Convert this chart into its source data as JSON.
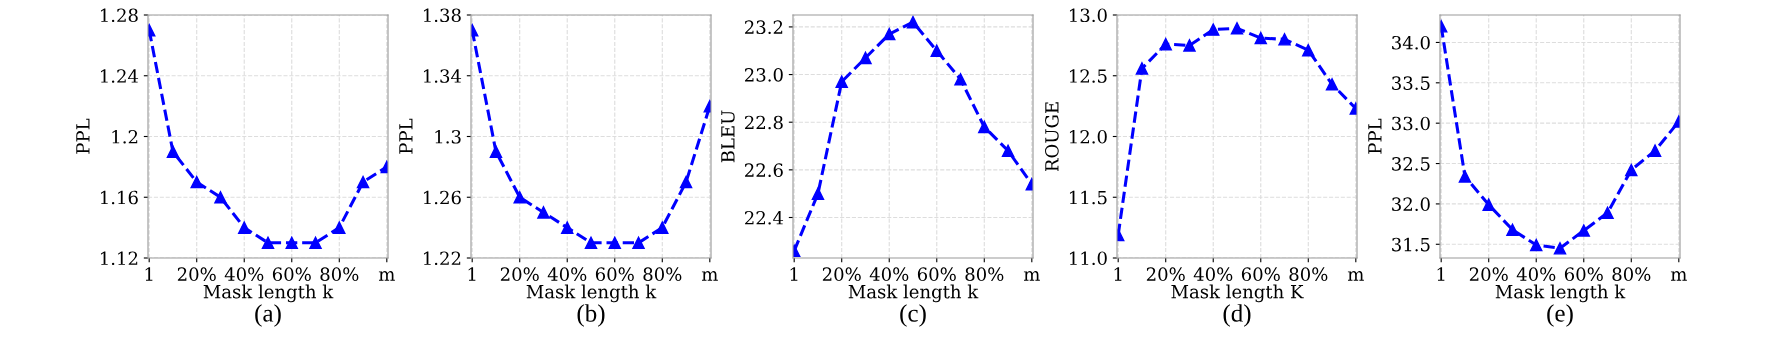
{
  "chart_data": [
    {
      "type": "line",
      "title": "(a)",
      "xlabel": "Mask length k",
      "ylabel": "PPL",
      "categories": [
        "1",
        null,
        "20%",
        null,
        "40%",
        null,
        "60%",
        null,
        "80%",
        null,
        "m"
      ],
      "series": [
        {
          "color": "#0000ff",
          "values": [
            1.27,
            1.19,
            1.17,
            1.16,
            1.14,
            1.13,
            1.13,
            1.13,
            1.14,
            1.17,
            1.18
          ]
        }
      ],
      "ylim": [
        1.12,
        1.28
      ],
      "yticks": [
        {
          "value": 1.12,
          "label": "1.12"
        },
        {
          "value": 1.16,
          "label": "1.16"
        },
        {
          "value": 1.2,
          "label": "1.2"
        },
        {
          "value": 1.24,
          "label": "1.24"
        },
        {
          "value": 1.28,
          "label": "1.28"
        }
      ],
      "grid": true,
      "marker": "triangle",
      "line_style": "dashed"
    },
    {
      "type": "line",
      "title": "(b)",
      "xlabel": "Mask length k",
      "ylabel": "PPL",
      "categories": [
        "1",
        null,
        "20%",
        null,
        "40%",
        null,
        "60%",
        null,
        "80%",
        null,
        "m"
      ],
      "series": [
        {
          "color": "#0000ff",
          "values": [
            1.37,
            1.29,
            1.26,
            1.25,
            1.24,
            1.23,
            1.23,
            1.23,
            1.24,
            1.27,
            1.32
          ]
        }
      ],
      "ylim": [
        1.22,
        1.38
      ],
      "yticks": [
        {
          "value": 1.22,
          "label": "1.22"
        },
        {
          "value": 1.26,
          "label": "1.26"
        },
        {
          "value": 1.3,
          "label": "1.3"
        },
        {
          "value": 1.34,
          "label": "1.34"
        },
        {
          "value": 1.38,
          "label": "1.38"
        }
      ],
      "grid": true,
      "marker": "triangle",
      "line_style": "dashed"
    },
    {
      "type": "line",
      "title": "(c)",
      "xlabel": "Mask length k",
      "ylabel": "BLEU",
      "categories": [
        "1",
        null,
        "20%",
        null,
        "40%",
        null,
        "60%",
        null,
        "80%",
        null,
        "m"
      ],
      "series": [
        {
          "color": "#0000ff",
          "values": [
            22.26,
            22.5,
            22.97,
            23.07,
            23.17,
            23.22,
            23.1,
            22.98,
            22.78,
            22.68,
            22.54
          ]
        }
      ],
      "ylim": [
        22.23,
        23.25
      ],
      "yticks": [
        {
          "value": 22.4,
          "label": "22.4"
        },
        {
          "value": 22.6,
          "label": "22.6"
        },
        {
          "value": 22.8,
          "label": "22.8"
        },
        {
          "value": 23.0,
          "label": "23.0"
        },
        {
          "value": 23.2,
          "label": "23.2"
        }
      ],
      "grid": true,
      "marker": "triangle",
      "line_style": "dashed"
    },
    {
      "type": "line",
      "title": "(d)",
      "xlabel": "Mask length K",
      "ylabel": "ROUGE",
      "categories": [
        "1",
        null,
        "20%",
        null,
        "40%",
        null,
        "60%",
        null,
        "80%",
        null,
        "m"
      ],
      "series": [
        {
          "color": "#0000ff",
          "values": [
            11.19,
            12.56,
            12.76,
            12.75,
            12.88,
            12.89,
            12.81,
            12.8,
            12.71,
            12.43,
            12.23
          ]
        }
      ],
      "ylim": [
        11.0,
        13.0
      ],
      "yticks": [
        {
          "value": 11.0,
          "label": "11.0"
        },
        {
          "value": 11.5,
          "label": "11.5"
        },
        {
          "value": 12.0,
          "label": "12.0"
        },
        {
          "value": 12.5,
          "label": "12.5"
        },
        {
          "value": 13.0,
          "label": "13.0"
        }
      ],
      "grid": true,
      "marker": "triangle",
      "line_style": "dashed"
    },
    {
      "type": "line",
      "title": "(e)",
      "xlabel": "Mask length k",
      "ylabel": "PPL",
      "categories": [
        "1",
        null,
        "20%",
        null,
        "40%",
        null,
        "60%",
        null,
        "80%",
        null,
        "m"
      ],
      "series": [
        {
          "color": "#0000ff",
          "values": [
            34.2,
            32.34,
            31.99,
            31.68,
            31.49,
            31.45,
            31.67,
            31.89,
            32.42,
            32.66,
            33.02
          ]
        }
      ],
      "ylim": [
        31.33,
        34.34
      ],
      "yticks": [
        {
          "value": 31.5,
          "label": "31.5"
        },
        {
          "value": 32.0,
          "label": "32.0"
        },
        {
          "value": 32.5,
          "label": "32.5"
        },
        {
          "value": 33.0,
          "label": "33.0"
        },
        {
          "value": 33.5,
          "label": "33.5"
        },
        {
          "value": 34.0,
          "label": "34.0"
        }
      ],
      "grid": true,
      "marker": "triangle",
      "line_style": "dashed"
    }
  ]
}
